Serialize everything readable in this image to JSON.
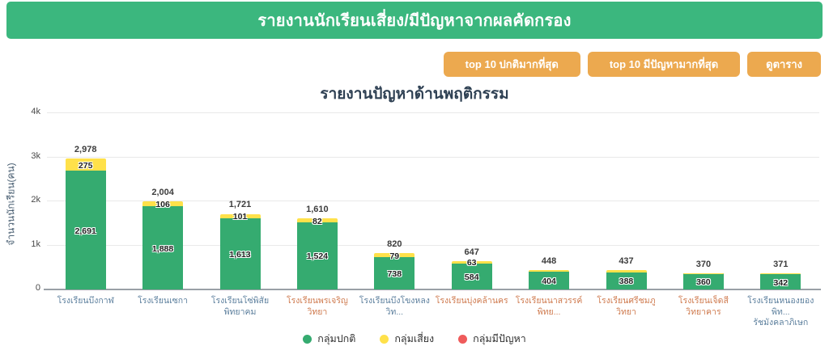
{
  "header": {
    "title": "รายงานนักเรียนเสี่ยง/มีปัญหาจากผลคัดกรอง",
    "bg_color": "#3bb77e"
  },
  "toolbar": {
    "accent_color": "#eca94f",
    "buttons": [
      {
        "label": "top 10 ปกติมากที่สุด"
      },
      {
        "label": "top 10 มีปัญหามากที่สุด"
      },
      {
        "label": "ดูตาราง"
      }
    ]
  },
  "chart_data": {
    "type": "bar",
    "stacked": true,
    "title": "รายงานปัญหาด้านพฤติกรรม",
    "ylabel": "จำนวนนักเรียน(คน)",
    "ylim": [
      0,
      4000
    ],
    "grid": true,
    "legend_position": "bottom",
    "yticks": [
      {
        "value": 0,
        "label": "0"
      },
      {
        "value": 1000,
        "label": "1k"
      },
      {
        "value": 2000,
        "label": "2k"
      },
      {
        "value": 3000,
        "label": "3k"
      },
      {
        "value": 4000,
        "label": "4k"
      }
    ],
    "series_colors": {
      "normal": "#35ab70",
      "risk": "#ffe14a",
      "problem": "#ef5b5b"
    },
    "legend": [
      {
        "label": "กลุ่มปกติ",
        "color": "#35ab70"
      },
      {
        "label": "กลุ่มเสี่ยง",
        "color": "#ffe14a"
      },
      {
        "label": "กลุ่มมีปัญหา",
        "color": "#ef5b5b"
      }
    ],
    "bars": [
      {
        "category": "โรงเรียนบึงกาฬ",
        "category_color": "#5c7f9d",
        "total": 2978,
        "total_label": "2,978",
        "normal": 2691,
        "normal_label": "2,691",
        "risk": 275,
        "risk_label": "275",
        "problem": 12
      },
      {
        "category": "โรงเรียนเซกา",
        "category_color": "#5c7f9d",
        "total": 2004,
        "total_label": "2,004",
        "normal": 1888,
        "normal_label": "1,888",
        "risk": 106,
        "risk_label": "106",
        "problem": 10
      },
      {
        "category": "โรงเรียนโซ่พิสัยพิทยาคม",
        "category_color": "#5c7f9d",
        "total": 1721,
        "total_label": "1,721",
        "normal": 1613,
        "normal_label": "1,613",
        "risk": 101,
        "risk_label": "101",
        "problem": 7
      },
      {
        "category": "โรงเรียนพรเจริญวิทยา",
        "category_color": "#cf7a4e",
        "total": 1610,
        "total_label": "1,610",
        "normal": 1524,
        "normal_label": "1,524",
        "risk": 82,
        "risk_label": "82",
        "problem": 4
      },
      {
        "category": "โรงเรียนบึงโขงหลงวิท...",
        "category_color": "#5c7f9d",
        "total": 820,
        "total_label": "820",
        "normal": 738,
        "normal_label": "738",
        "risk": 79,
        "risk_label": "79",
        "problem": 3
      },
      {
        "category": "โรงเรียนบุ่งคล้านคร",
        "category_color": "#cf7a4e",
        "total": 647,
        "total_label": "647",
        "normal": 584,
        "normal_label": "584",
        "risk": 63,
        "risk_label": "63",
        "problem": 0
      },
      {
        "category": "โรงเรียนนาสวรรค์พิทย...",
        "category_color": "#cf7a4e",
        "total": 448,
        "total_label": "448",
        "normal": 404,
        "normal_label": "404",
        "risk": 44,
        "risk_label": null,
        "problem": 0
      },
      {
        "category": "โรงเรียนศรีชมภูวิทยา",
        "category_color": "#cf7a4e",
        "total": 437,
        "total_label": "437",
        "normal": 388,
        "normal_label": "388",
        "risk": 49,
        "risk_label": null,
        "problem": 0
      },
      {
        "category": "โรงเรียนเจ็ดสีวิทยาคาร",
        "category_color": "#cf7a4e",
        "total": 370,
        "total_label": "370",
        "normal": 360,
        "normal_label": "360",
        "risk": 10,
        "risk_label": null,
        "problem": 0
      },
      {
        "category": "โรงเรียนหนองยองพิท...\nรัชมังคลาภิเษก",
        "category_color": "#5c7f9d",
        "total": 371,
        "total_label": "371",
        "normal": 342,
        "normal_label": "342",
        "risk": 29,
        "risk_label": null,
        "problem": 0
      }
    ]
  }
}
